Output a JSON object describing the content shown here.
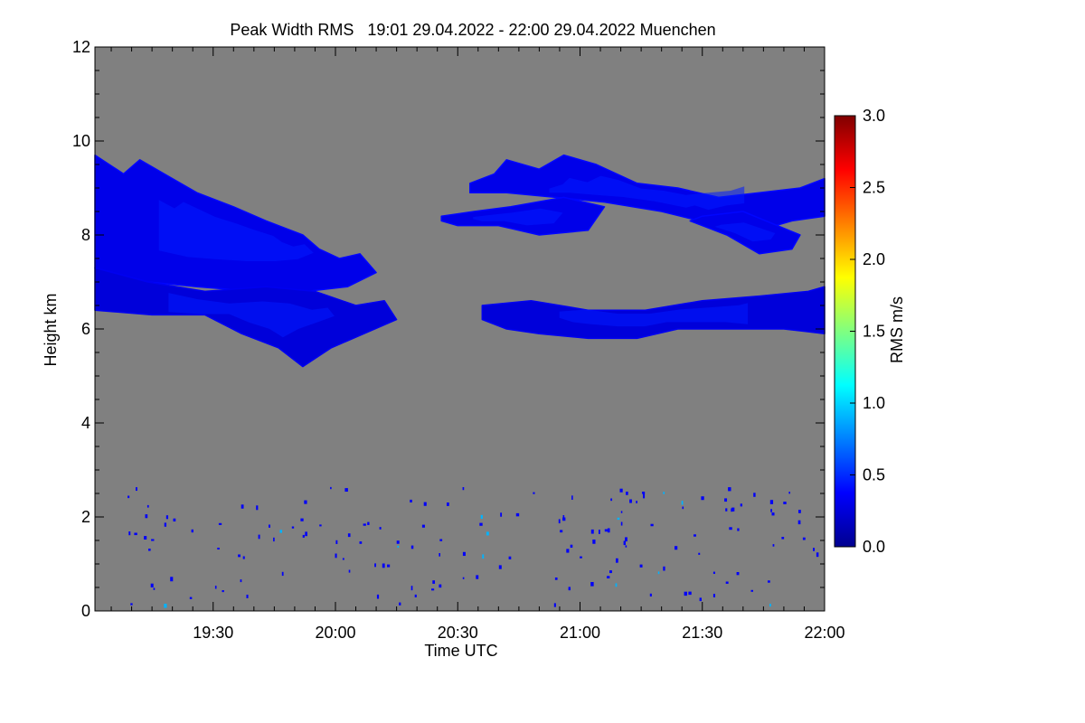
{
  "chart_data": {
    "type": "heatmap",
    "title": "Peak Width RMS   19:01 29.04.2022 - 22:00 29.04.2022 Muenchen",
    "xlabel": "Time UTC",
    "ylabel": "Height km",
    "x_range_minutes_utc": [
      1141,
      1320
    ],
    "y_range_km": [
      0,
      12
    ],
    "x_ticks": [
      {
        "label": "19:30",
        "value": 1170
      },
      {
        "label": "20:00",
        "value": 1200
      },
      {
        "label": "20:30",
        "value": 1230
      },
      {
        "label": "21:00",
        "value": 1260
      },
      {
        "label": "21:30",
        "value": 1290
      },
      {
        "label": "22:00",
        "value": 1320
      }
    ],
    "y_ticks": [
      0,
      2,
      4,
      6,
      8,
      10,
      12
    ],
    "colorbar": {
      "label": "RMS m/s",
      "range": [
        0.0,
        3.0
      ],
      "ticks": [
        "0.0",
        "0.5",
        "1.0",
        "1.5",
        "2.0",
        "2.5",
        "3.0"
      ],
      "colors": [
        "#00008f",
        "#0000ff",
        "#0080ff",
        "#00ffff",
        "#80ff80",
        "#ffff00",
        "#ff8000",
        "#ff0000",
        "#800000"
      ]
    },
    "background_color": "#808080",
    "cloud_layers": [
      {
        "name": "upper-left",
        "rms": 0.3,
        "polygon": [
          [
            1141,
            9.7
          ],
          [
            1148,
            9.3
          ],
          [
            1152,
            9.6
          ],
          [
            1158,
            9.3
          ],
          [
            1166,
            8.9
          ],
          [
            1175,
            8.6
          ],
          [
            1183,
            8.3
          ],
          [
            1192,
            8.0
          ],
          [
            1196,
            7.7
          ],
          [
            1201,
            7.5
          ],
          [
            1206,
            7.6
          ],
          [
            1210,
            7.2
          ],
          [
            1203,
            6.9
          ],
          [
            1193,
            6.8
          ],
          [
            1180,
            6.8
          ],
          [
            1166,
            6.9
          ],
          [
            1154,
            7.0
          ],
          [
            1141,
            7.3
          ]
        ]
      },
      {
        "name": "lower-left",
        "rms": 0.25,
        "polygon": [
          [
            1141,
            7.3
          ],
          [
            1154,
            7.0
          ],
          [
            1168,
            6.8
          ],
          [
            1183,
            6.9
          ],
          [
            1195,
            6.8
          ],
          [
            1205,
            6.5
          ],
          [
            1212,
            6.6
          ],
          [
            1215,
            6.2
          ],
          [
            1207,
            5.9
          ],
          [
            1199,
            5.6
          ],
          [
            1192,
            5.2
          ],
          [
            1186,
            5.6
          ],
          [
            1177,
            5.9
          ],
          [
            1168,
            6.3
          ],
          [
            1155,
            6.3
          ],
          [
            1141,
            6.4
          ]
        ]
      },
      {
        "name": "upper-right",
        "rms": 0.3,
        "polygon": [
          [
            1233,
            9.1
          ],
          [
            1239,
            9.3
          ],
          [
            1242,
            9.6
          ],
          [
            1250,
            9.4
          ],
          [
            1256,
            9.7
          ],
          [
            1264,
            9.5
          ],
          [
            1274,
            9.1
          ],
          [
            1284,
            9.0
          ],
          [
            1294,
            8.8
          ],
          [
            1304,
            8.9
          ],
          [
            1314,
            9.0
          ],
          [
            1320,
            9.2
          ],
          [
            1320,
            8.4
          ],
          [
            1312,
            8.3
          ],
          [
            1304,
            8.1
          ],
          [
            1298,
            8.3
          ],
          [
            1294,
            8.2
          ],
          [
            1280,
            8.5
          ],
          [
            1266,
            8.7
          ],
          [
            1254,
            8.8
          ],
          [
            1242,
            8.9
          ],
          [
            1233,
            8.9
          ]
        ]
      },
      {
        "name": "mid-right",
        "rms": 0.3,
        "polygon": [
          [
            1226,
            8.4
          ],
          [
            1234,
            8.5
          ],
          [
            1243,
            8.6
          ],
          [
            1256,
            8.8
          ],
          [
            1266,
            8.6
          ],
          [
            1262,
            8.1
          ],
          [
            1250,
            8.0
          ],
          [
            1240,
            8.2
          ],
          [
            1230,
            8.2
          ],
          [
            1226,
            8.3
          ]
        ]
      },
      {
        "name": "mid-right-b",
        "rms": 0.3,
        "polygon": [
          [
            1287,
            8.3
          ],
          [
            1296,
            8.0
          ],
          [
            1304,
            7.6
          ],
          [
            1312,
            7.7
          ],
          [
            1314,
            8.0
          ],
          [
            1300,
            8.5
          ],
          [
            1290,
            8.4
          ]
        ]
      },
      {
        "name": "lower-right",
        "rms": 0.25,
        "polygon": [
          [
            1236,
            6.5
          ],
          [
            1248,
            6.6
          ],
          [
            1262,
            6.4
          ],
          [
            1276,
            6.4
          ],
          [
            1290,
            6.6
          ],
          [
            1304,
            6.7
          ],
          [
            1316,
            6.8
          ],
          [
            1320,
            6.9
          ],
          [
            1320,
            5.9
          ],
          [
            1310,
            6.0
          ],
          [
            1298,
            6.0
          ],
          [
            1284,
            6.0
          ],
          [
            1274,
            5.8
          ],
          [
            1262,
            5.8
          ],
          [
            1250,
            5.9
          ],
          [
            1242,
            6.0
          ],
          [
            1236,
            6.2
          ]
        ]
      }
    ]
  }
}
